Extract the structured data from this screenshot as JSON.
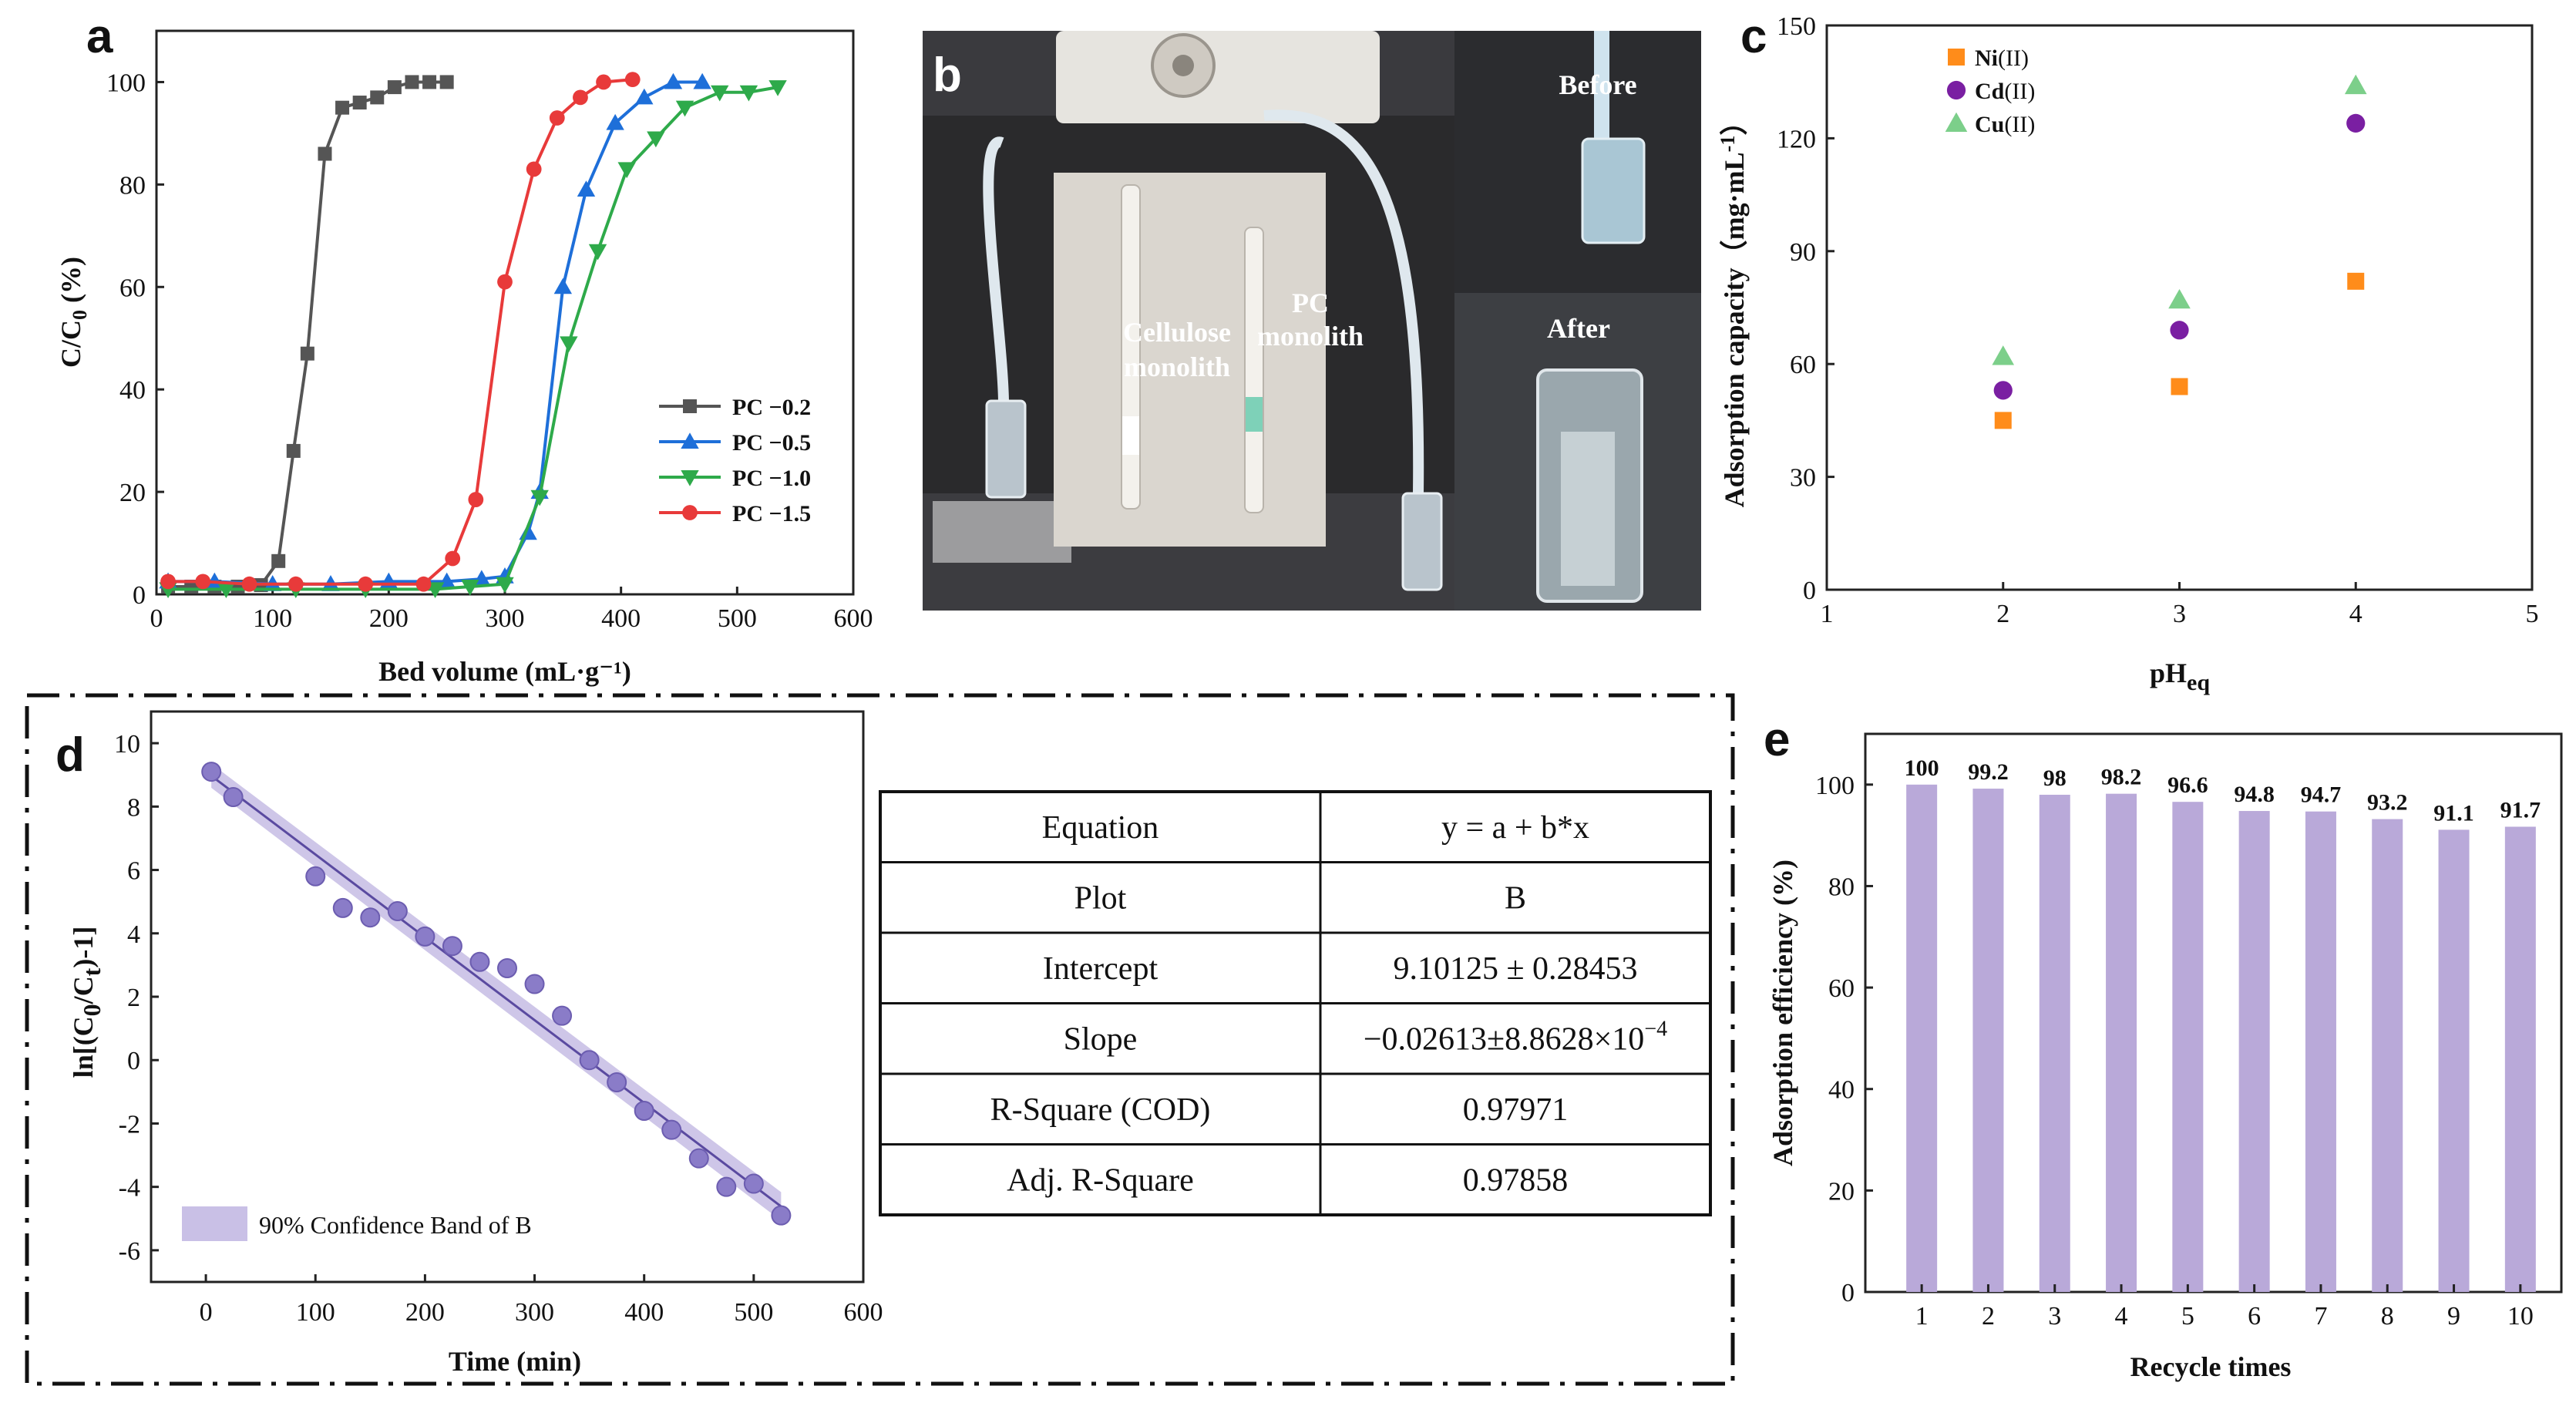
{
  "panels": {
    "a": "a",
    "b": "b",
    "c": "c",
    "d": "d",
    "e": "e"
  },
  "photo": {
    "before": "Before",
    "after": "After",
    "cellulose_line1": "Cellulose",
    "cellulose_line2": "monolith",
    "pc_line1": "PC",
    "pc_line2": "monolith"
  },
  "table": {
    "rows": [
      {
        "label": "Equation",
        "value": "y = a + b*x"
      },
      {
        "label": "Plot",
        "value": "B"
      },
      {
        "label": "Intercept",
        "value": "9.10125 ± 0.28453"
      },
      {
        "label": "Slope",
        "value": "−0.02613±8.8628×10",
        "value_sup": "−4"
      },
      {
        "label": "R-Square (COD)",
        "value": "0.97971"
      },
      {
        "label": "Adj. R-Square",
        "value": "0.97858"
      }
    ]
  },
  "colors": {
    "pc02": "#555555",
    "pc05": "#1e6fd9",
    "pc10": "#2eaa4a",
    "pc15": "#e83a3a",
    "ni": "#ff8c1a",
    "cd": "#7a1fa2",
    "cu": "#7ccf8a",
    "fit": "#5a4aa0",
    "band": "#c9c0e6",
    "bar": "#b9a9d9"
  },
  "chart_data": [
    {
      "id": "a",
      "type": "line",
      "title": "",
      "xlabel": "Bed volume (mL·g⁻¹)",
      "ylabel_main": "C/C",
      "ylabel_sub": "0",
      "ylabel_tail": " (%)",
      "xlim": [
        0,
        600
      ],
      "ylim": [
        0,
        110
      ],
      "xticks": [
        0,
        100,
        200,
        300,
        400,
        500,
        600
      ],
      "yticks": [
        0,
        20,
        40,
        60,
        80,
        100
      ],
      "legend_position": "bottom-right",
      "series": [
        {
          "name": "PC −0.2",
          "marker": "square",
          "color": "#555555",
          "x": [
            10,
            30,
            50,
            70,
            90,
            105,
            118,
            130,
            145,
            160,
            175,
            190,
            205,
            220,
            235,
            250
          ],
          "y": [
            1.5,
            1.5,
            1.5,
            1.5,
            1.8,
            6.5,
            28,
            47,
            86,
            95,
            96,
            97,
            99,
            100,
            100,
            100
          ]
        },
        {
          "name": "PC −0.5",
          "marker": "triangle-up",
          "color": "#1e6fd9",
          "x": [
            10,
            50,
            100,
            150,
            200,
            250,
            280,
            300,
            320,
            330,
            350,
            370,
            395,
            420,
            445,
            470
          ],
          "y": [
            2.5,
            2.5,
            2,
            2,
            2.5,
            2.5,
            3,
            3.5,
            12,
            20,
            60,
            79,
            92,
            97,
            100,
            100
          ]
        },
        {
          "name": "PC −1.0",
          "marker": "triangle-down",
          "color": "#2eaa4a",
          "x": [
            10,
            60,
            120,
            180,
            240,
            270,
            300,
            330,
            355,
            380,
            405,
            430,
            455,
            485,
            510,
            535
          ],
          "y": [
            1,
            1,
            1,
            1,
            1,
            1.5,
            2,
            19,
            49,
            67,
            83,
            89,
            95,
            98,
            98,
            99
          ]
        },
        {
          "name": "PC −1.5",
          "marker": "circle",
          "color": "#e83a3a",
          "x": [
            10,
            40,
            80,
            120,
            180,
            230,
            255,
            275,
            300,
            325,
            345,
            365,
            385,
            410
          ],
          "y": [
            2.5,
            2.5,
            2,
            2,
            2,
            2,
            7,
            18.5,
            61,
            83,
            93,
            97,
            100,
            100.5
          ]
        }
      ]
    },
    {
      "id": "c",
      "type": "scatter",
      "title": "",
      "xlabel_main": "pH",
      "xlabel_sub": "eq",
      "ylabel": "Adsorption capacity（mg·mL",
      "ylabel_sup": "-1",
      "ylabel_tail": "）",
      "xlim": [
        1,
        5
      ],
      "ylim": [
        0,
        150
      ],
      "xticks": [
        1,
        2,
        3,
        4,
        5
      ],
      "yticks": [
        0,
        30,
        60,
        90,
        120,
        150
      ],
      "legend_position": "top-left",
      "series": [
        {
          "name": "Ni",
          "suffix": "(II)",
          "marker": "square",
          "color": "#ff8c1a",
          "x": [
            2,
            3,
            4
          ],
          "y": [
            45,
            54,
            82
          ]
        },
        {
          "name": "Cd",
          "suffix": "(II)",
          "marker": "circle",
          "color": "#7a1fa2",
          "x": [
            2,
            3,
            4
          ],
          "y": [
            53,
            69,
            124
          ]
        },
        {
          "name": "Cu",
          "suffix": "(II)",
          "marker": "triangle-up",
          "color": "#7ccf8a",
          "x": [
            2,
            3,
            4
          ],
          "y": [
            62,
            77,
            134
          ]
        }
      ]
    },
    {
      "id": "d",
      "type": "scatter",
      "title": "",
      "xlabel": "Time (min)",
      "ylabel": "ln[(C0/Ct)-1]",
      "ylabel_parts": [
        "ln[(C",
        "0",
        "/C",
        "t",
        ")-1]"
      ],
      "xlim": [
        -50,
        600
      ],
      "ylim": [
        -7,
        11
      ],
      "xticks": [
        0,
        100,
        200,
        300,
        400,
        500,
        600
      ],
      "yticks": [
        -6,
        -4,
        -2,
        0,
        2,
        4,
        6,
        8,
        10
      ],
      "legend": "90% Confidence Band of B",
      "legend_position": "bottom-left",
      "fit": {
        "intercept": 9.10125,
        "slope": -0.02613,
        "x_range": [
          5,
          525
        ]
      },
      "points": {
        "x": [
          5,
          25,
          100,
          125,
          150,
          175,
          200,
          225,
          250,
          275,
          300,
          325,
          350,
          375,
          400,
          425,
          450,
          475,
          500,
          525
        ],
        "y": [
          9.1,
          8.3,
          5.8,
          4.8,
          4.5,
          4.7,
          3.9,
          3.6,
          3.1,
          2.9,
          2.4,
          1.4,
          0.0,
          -0.7,
          -1.6,
          -2.2,
          -3.1,
          -4.0,
          -3.9,
          -4.9
        ]
      }
    },
    {
      "id": "e",
      "type": "bar",
      "title": "",
      "xlabel": "Recycle times",
      "ylabel": "Adsorption efficiency (%)",
      "categories": [
        "1",
        "2",
        "3",
        "4",
        "5",
        "6",
        "7",
        "8",
        "9",
        "10"
      ],
      "values": [
        100,
        99.2,
        98,
        98.2,
        96.6,
        94.8,
        94.7,
        93.2,
        91.1,
        91.7
      ],
      "labels": [
        "100",
        "99.2",
        "98",
        "98.2",
        "96.6",
        "94.8",
        "94.7",
        "93.2",
        "91.1",
        "91.7"
      ],
      "ylim": [
        0,
        110
      ],
      "yticks": [
        0,
        20,
        40,
        60,
        80,
        100
      ]
    }
  ]
}
